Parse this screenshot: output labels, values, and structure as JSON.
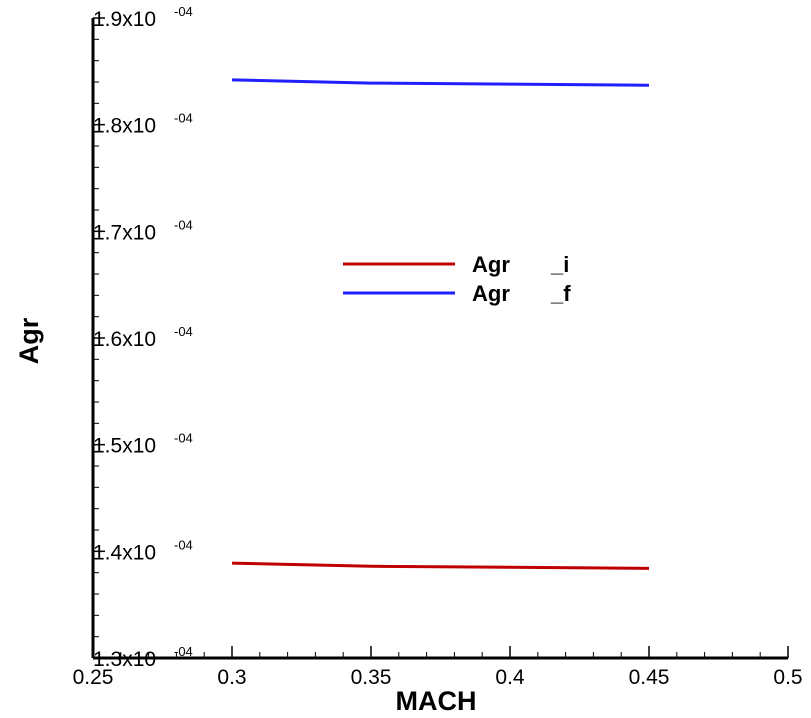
{
  "chart_data": {
    "type": "line",
    "title": "",
    "xlabel": "MACH",
    "ylabel": "Agr",
    "xlim": [
      0.25,
      0.5
    ],
    "ylim": [
      0.00013,
      0.00019
    ],
    "x_ticks": [
      {
        "value": 0.25,
        "label": "0.25"
      },
      {
        "value": 0.3,
        "label": "0.3"
      },
      {
        "value": 0.35,
        "label": "0.35"
      },
      {
        "value": 0.4,
        "label": "0.4"
      },
      {
        "value": 0.45,
        "label": "0.45"
      },
      {
        "value": 0.5,
        "label": "0.5"
      }
    ],
    "y_ticks": [
      {
        "value": 0.00013,
        "mantissa": "1.3x10",
        "exponent": "-04"
      },
      {
        "value": 0.00014,
        "mantissa": "1.4x10",
        "exponent": "-04"
      },
      {
        "value": 0.00015,
        "mantissa": "1.5x10",
        "exponent": "-04"
      },
      {
        "value": 0.00016,
        "mantissa": "1.6x10",
        "exponent": "-04"
      },
      {
        "value": 0.00017,
        "mantissa": "1.7x10",
        "exponent": "-04"
      },
      {
        "value": 0.00018,
        "mantissa": "1.8x10",
        "exponent": "-04"
      },
      {
        "value": 0.00019,
        "mantissa": "1.9x10",
        "exponent": "-04"
      }
    ],
    "grid": false,
    "legend_position": "center",
    "series": [
      {
        "name_part1": "Agr",
        "name_part2": "_i",
        "color": "#c00000",
        "x": [
          0.3,
          0.35,
          0.4,
          0.45
        ],
        "y": [
          0.0001389,
          0.0001386,
          0.0001385,
          0.0001384
        ]
      },
      {
        "name_part1": "Agr",
        "name_part2": "_f",
        "color": "#2020ff",
        "x": [
          0.3,
          0.35,
          0.4,
          0.45
        ],
        "y": [
          0.0001842,
          0.0001839,
          0.0001838,
          0.0001837
        ]
      }
    ]
  }
}
